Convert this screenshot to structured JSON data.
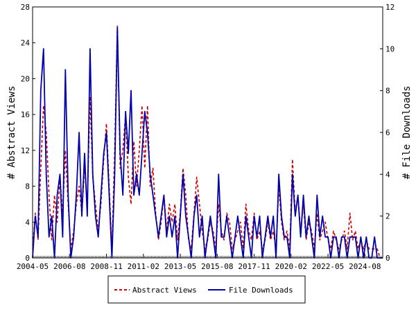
{
  "chart_data": {
    "type": "line",
    "y_left": {
      "label": "# Abstract Views",
      "range": [
        0,
        28
      ],
      "ticks": [
        "0",
        "4",
        "8",
        "12",
        "16",
        "20",
        "24",
        "28"
      ]
    },
    "y_right": {
      "label": "# File Downloads",
      "range": [
        0,
        12
      ],
      "ticks": [
        "0",
        "2",
        "4",
        "6",
        "8",
        "10",
        "12"
      ]
    },
    "x_axis": {
      "range": [
        "2004-05",
        "2025-09"
      ],
      "tick_labels": [
        "2004-05",
        "2006-08",
        "2008-11",
        "2011-02",
        "2013-05",
        "2015-08",
        "2017-11",
        "2020-02",
        "2022-05",
        "2024-08"
      ]
    },
    "series": [
      {
        "name": "Abstract Views",
        "axis": "left",
        "color": "#cc0000",
        "style": "dashed",
        "points": [
          [
            "2004-05",
            1
          ],
          [
            "2004-07",
            5
          ],
          [
            "2004-09",
            2
          ],
          [
            "2004-11",
            10
          ],
          [
            "2005-01",
            17
          ],
          [
            "2005-03",
            14
          ],
          [
            "2005-05",
            7
          ],
          [
            "2005-07",
            2
          ],
          [
            "2005-09",
            7
          ],
          [
            "2005-11",
            4
          ],
          [
            "2006-01",
            9
          ],
          [
            "2006-03",
            5
          ],
          [
            "2006-05",
            12
          ],
          [
            "2006-07",
            6
          ],
          [
            "2006-09",
            1
          ],
          [
            "2006-11",
            3
          ],
          [
            "2007-01",
            6
          ],
          [
            "2007-03",
            8
          ],
          [
            "2007-05",
            5
          ],
          [
            "2007-07",
            10
          ],
          [
            "2007-09",
            6
          ],
          [
            "2007-11",
            18
          ],
          [
            "2008-01",
            9
          ],
          [
            "2008-03",
            6
          ],
          [
            "2008-05",
            3
          ],
          [
            "2008-07",
            6
          ],
          [
            "2008-09",
            11
          ],
          [
            "2008-11",
            15
          ],
          [
            "2009-01",
            8
          ],
          [
            "2009-03",
            1
          ],
          [
            "2009-05",
            12
          ],
          [
            "2009-07",
            26
          ],
          [
            "2009-09",
            10
          ],
          [
            "2009-11",
            12
          ],
          [
            "2010-01",
            16
          ],
          [
            "2010-03",
            9
          ],
          [
            "2010-05",
            6
          ],
          [
            "2010-07",
            13
          ],
          [
            "2010-09",
            8
          ],
          [
            "2010-11",
            12
          ],
          [
            "2011-01",
            17
          ],
          [
            "2011-03",
            10
          ],
          [
            "2011-05",
            17
          ],
          [
            "2011-07",
            8
          ],
          [
            "2011-09",
            10
          ],
          [
            "2011-11",
            5
          ],
          [
            "2012-01",
            2
          ],
          [
            "2012-03",
            4
          ],
          [
            "2012-05",
            7
          ],
          [
            "2012-07",
            3
          ],
          [
            "2012-09",
            6
          ],
          [
            "2012-11",
            4
          ],
          [
            "2013-01",
            6
          ],
          [
            "2013-03",
            2
          ],
          [
            "2013-05",
            5
          ],
          [
            "2013-07",
            10
          ],
          [
            "2013-09",
            7
          ],
          [
            "2013-11",
            2
          ],
          [
            "2014-01",
            1
          ],
          [
            "2014-03",
            5
          ],
          [
            "2014-05",
            9
          ],
          [
            "2014-07",
            6
          ],
          [
            "2014-09",
            3
          ],
          [
            "2014-11",
            1
          ],
          [
            "2015-01",
            2
          ],
          [
            "2015-03",
            4
          ],
          [
            "2015-05",
            3
          ],
          [
            "2015-07",
            1
          ],
          [
            "2015-09",
            6
          ],
          [
            "2015-11",
            3
          ],
          [
            "2016-01",
            2
          ],
          [
            "2016-03",
            5
          ],
          [
            "2016-05",
            4
          ],
          [
            "2016-07",
            1
          ],
          [
            "2016-09",
            2
          ],
          [
            "2016-11",
            3
          ],
          [
            "2017-01",
            4
          ],
          [
            "2017-03",
            1
          ],
          [
            "2017-05",
            6
          ],
          [
            "2017-07",
            3
          ],
          [
            "2017-09",
            2
          ],
          [
            "2017-11",
            5
          ],
          [
            "2018-01",
            2
          ],
          [
            "2018-03",
            3
          ],
          [
            "2018-05",
            1
          ],
          [
            "2018-07",
            2
          ],
          [
            "2018-09",
            4
          ],
          [
            "2018-11",
            2
          ],
          [
            "2019-01",
            3
          ],
          [
            "2019-03",
            1
          ],
          [
            "2019-05",
            8
          ],
          [
            "2019-07",
            4
          ],
          [
            "2019-09",
            2
          ],
          [
            "2019-11",
            3
          ],
          [
            "2020-01",
            1
          ],
          [
            "2020-03",
            11
          ],
          [
            "2020-05",
            5
          ],
          [
            "2020-07",
            7
          ],
          [
            "2020-09",
            3
          ],
          [
            "2020-11",
            6
          ],
          [
            "2021-01",
            2
          ],
          [
            "2021-03",
            4
          ],
          [
            "2021-05",
            3
          ],
          [
            "2021-07",
            1
          ],
          [
            "2021-09",
            5
          ],
          [
            "2021-11",
            2
          ],
          [
            "2022-01",
            3
          ],
          [
            "2022-03",
            4
          ],
          [
            "2022-05",
            2
          ],
          [
            "2022-07",
            1
          ],
          [
            "2022-09",
            3
          ],
          [
            "2022-11",
            2
          ],
          [
            "2023-01",
            1
          ],
          [
            "2023-03",
            2
          ],
          [
            "2023-05",
            3
          ],
          [
            "2023-07",
            1
          ],
          [
            "2023-09",
            5
          ],
          [
            "2023-11",
            2
          ],
          [
            "2024-01",
            3
          ],
          [
            "2024-03",
            1
          ],
          [
            "2024-05",
            2
          ],
          [
            "2024-07",
            1
          ],
          [
            "2024-09",
            2
          ],
          [
            "2024-11",
            1
          ],
          [
            "2025-01",
            1
          ],
          [
            "2025-03",
            1
          ],
          [
            "2025-05",
            1
          ],
          [
            "2025-07",
            0
          ],
          [
            "2025-09",
            0
          ]
        ]
      },
      {
        "name": "File Downloads",
        "axis": "right",
        "color": "#0000aa",
        "style": "solid",
        "points": [
          [
            "2004-05",
            0
          ],
          [
            "2004-07",
            2
          ],
          [
            "2004-09",
            1
          ],
          [
            "2004-11",
            8
          ],
          [
            "2005-01",
            10
          ],
          [
            "2005-03",
            4
          ],
          [
            "2005-05",
            1
          ],
          [
            "2005-07",
            2
          ],
          [
            "2005-09",
            0
          ],
          [
            "2005-11",
            3
          ],
          [
            "2006-01",
            4
          ],
          [
            "2006-03",
            1
          ],
          [
            "2006-05",
            9
          ],
          [
            "2006-07",
            3
          ],
          [
            "2006-09",
            0
          ],
          [
            "2006-11",
            1
          ],
          [
            "2007-01",
            3
          ],
          [
            "2007-03",
            6
          ],
          [
            "2007-05",
            2
          ],
          [
            "2007-07",
            5
          ],
          [
            "2007-09",
            2
          ],
          [
            "2007-11",
            10
          ],
          [
            "2008-01",
            4
          ],
          [
            "2008-03",
            2
          ],
          [
            "2008-05",
            1
          ],
          [
            "2008-07",
            3
          ],
          [
            "2008-09",
            5
          ],
          [
            "2008-11",
            6
          ],
          [
            "2009-01",
            3
          ],
          [
            "2009-03",
            0
          ],
          [
            "2009-05",
            4
          ],
          [
            "2009-07",
            11
          ],
          [
            "2009-09",
            5
          ],
          [
            "2009-11",
            3
          ],
          [
            "2010-01",
            7
          ],
          [
            "2010-03",
            5
          ],
          [
            "2010-05",
            8
          ],
          [
            "2010-07",
            3
          ],
          [
            "2010-09",
            4
          ],
          [
            "2010-11",
            3
          ],
          [
            "2011-01",
            5
          ],
          [
            "2011-03",
            7
          ],
          [
            "2011-05",
            6
          ],
          [
            "2011-07",
            4
          ],
          [
            "2011-09",
            3
          ],
          [
            "2011-11",
            2
          ],
          [
            "2012-01",
            1
          ],
          [
            "2012-03",
            2
          ],
          [
            "2012-05",
            3
          ],
          [
            "2012-07",
            1
          ],
          [
            "2012-09",
            2
          ],
          [
            "2012-11",
            1
          ],
          [
            "2013-01",
            2
          ],
          [
            "2013-03",
            0
          ],
          [
            "2013-05",
            2
          ],
          [
            "2013-07",
            4
          ],
          [
            "2013-09",
            2
          ],
          [
            "2013-11",
            1
          ],
          [
            "2014-01",
            0
          ],
          [
            "2014-03",
            2
          ],
          [
            "2014-05",
            3
          ],
          [
            "2014-07",
            1
          ],
          [
            "2014-09",
            2
          ],
          [
            "2014-11",
            0
          ],
          [
            "2015-01",
            1
          ],
          [
            "2015-03",
            2
          ],
          [
            "2015-05",
            1
          ],
          [
            "2015-07",
            0
          ],
          [
            "2015-09",
            4
          ],
          [
            "2015-11",
            1
          ],
          [
            "2016-01",
            1
          ],
          [
            "2016-03",
            2
          ],
          [
            "2016-05",
            1
          ],
          [
            "2016-07",
            0
          ],
          [
            "2016-09",
            1
          ],
          [
            "2016-11",
            2
          ],
          [
            "2017-01",
            1
          ],
          [
            "2017-03",
            0
          ],
          [
            "2017-05",
            2
          ],
          [
            "2017-07",
            1
          ],
          [
            "2017-09",
            0
          ],
          [
            "2017-11",
            2
          ],
          [
            "2018-01",
            1
          ],
          [
            "2018-03",
            2
          ],
          [
            "2018-05",
            0
          ],
          [
            "2018-07",
            1
          ],
          [
            "2018-09",
            2
          ],
          [
            "2018-11",
            1
          ],
          [
            "2019-01",
            2
          ],
          [
            "2019-03",
            0
          ],
          [
            "2019-05",
            4
          ],
          [
            "2019-07",
            2
          ],
          [
            "2019-09",
            1
          ],
          [
            "2019-11",
            1
          ],
          [
            "2020-01",
            0
          ],
          [
            "2020-03",
            4
          ],
          [
            "2020-05",
            2
          ],
          [
            "2020-07",
            3
          ],
          [
            "2020-09",
            1
          ],
          [
            "2020-11",
            3
          ],
          [
            "2021-01",
            1
          ],
          [
            "2021-03",
            2
          ],
          [
            "2021-05",
            1
          ],
          [
            "2021-07",
            0
          ],
          [
            "2021-09",
            3
          ],
          [
            "2021-11",
            1
          ],
          [
            "2022-01",
            2
          ],
          [
            "2022-03",
            1
          ],
          [
            "2022-05",
            1
          ],
          [
            "2022-07",
            0
          ],
          [
            "2022-09",
            1
          ],
          [
            "2022-11",
            1
          ],
          [
            "2023-01",
            0
          ],
          [
            "2023-03",
            1
          ],
          [
            "2023-05",
            1
          ],
          [
            "2023-07",
            0
          ],
          [
            "2023-09",
            1
          ],
          [
            "2023-11",
            1
          ],
          [
            "2024-01",
            1
          ],
          [
            "2024-03",
            0
          ],
          [
            "2024-05",
            1
          ],
          [
            "2024-07",
            0
          ],
          [
            "2024-09",
            1
          ],
          [
            "2024-11",
            0
          ],
          [
            "2025-01",
            0
          ],
          [
            "2025-03",
            1
          ],
          [
            "2025-05",
            0
          ],
          [
            "2025-07",
            0
          ],
          [
            "2025-09",
            0
          ]
        ]
      }
    ],
    "legend": {
      "placement": "bottom-center",
      "entries": [
        "Abstract Views",
        "File Downloads"
      ]
    },
    "grid": false
  }
}
